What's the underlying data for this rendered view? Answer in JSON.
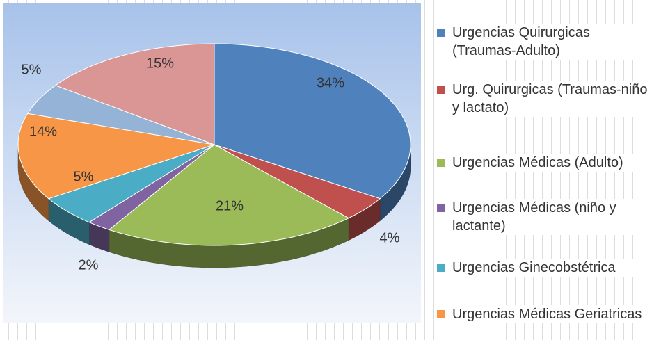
{
  "chart_data": {
    "type": "pie",
    "categories": [
      "Urgencias Quirurgicas (Traumas-Adulto)",
      "Urg. Quirurgicas (Traumas-niño y lactato)",
      "Urgencias Médicas (Adulto)",
      "Urgencias Médicas (niño y lactante)",
      "Urgencias Ginecobstétrica",
      "Urgencias Médicas Geriatricas",
      null,
      null
    ],
    "values": [
      34,
      4,
      21,
      2,
      5,
      14,
      5,
      15
    ],
    "value_labels": [
      "34%",
      "4%",
      "21%",
      "2%",
      "5%",
      "14%",
      "5%",
      "15%"
    ],
    "colors": [
      "#4f81bd",
      "#c0504d",
      "#9bbb59",
      "#8064a2",
      "#4bacc6",
      "#f79646",
      "#95b3d7",
      "#d99694"
    ],
    "legend": "right"
  }
}
